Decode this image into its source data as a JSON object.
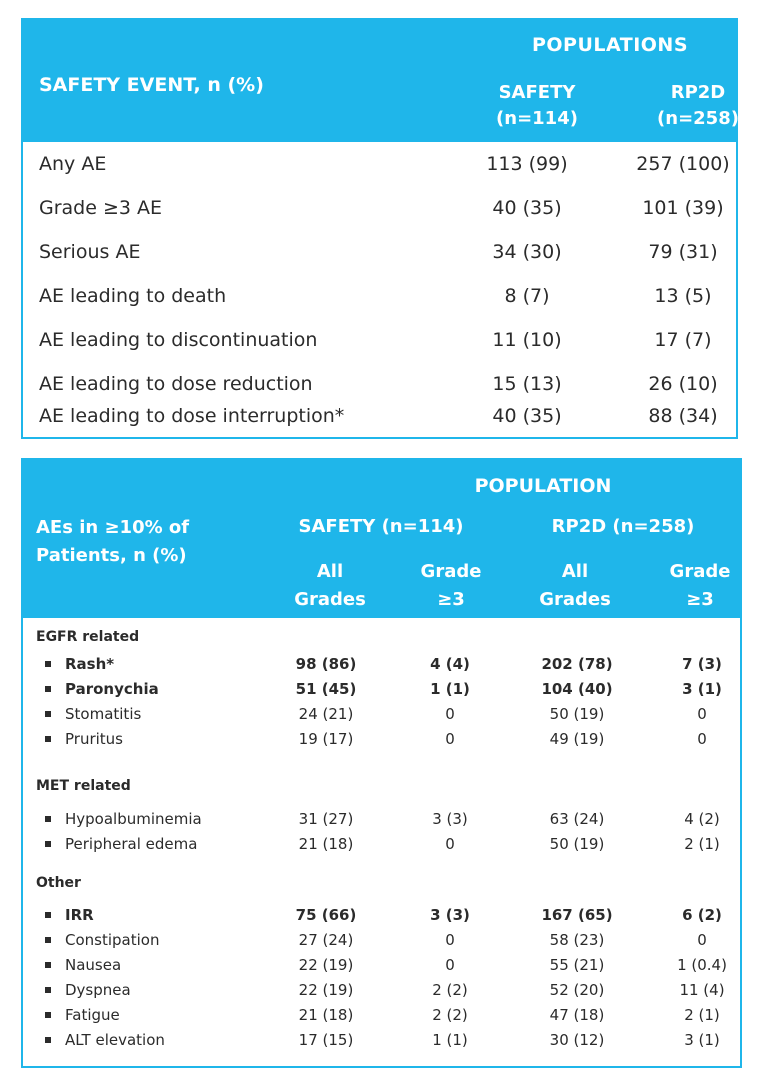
{
  "table1": {
    "header": {
      "populations": "POPULATIONS",
      "event_label": "SAFETY EVENT, n (%)",
      "safety_line1": "SAFETY",
      "safety_line2": "(n=114)",
      "rp2d_line1": "RP2D",
      "rp2d_line2": "(n=258)"
    },
    "rows": [
      {
        "label": "Any AE",
        "safety": "113 (99)",
        "rp2d": "257 (100)"
      },
      {
        "label": "Grade ≥3 AE",
        "safety": "40 (35)",
        "rp2d": "101 (39)"
      },
      {
        "label": "Serious AE",
        "safety": "34 (30)",
        "rp2d": "79 (31)"
      },
      {
        "label": "AE leading to death",
        "safety": "8 (7)",
        "rp2d": "13 (5)"
      },
      {
        "label": "AE leading to discontinuation",
        "safety": "11 (10)",
        "rp2d": "17 (7)"
      },
      {
        "label": "AE leading to dose reduction",
        "safety": "15 (13)",
        "rp2d": "26 (10)"
      },
      {
        "label": "AE leading to dose interruption*",
        "safety": "40 (35)",
        "rp2d": "88 (34)"
      }
    ]
  },
  "table2": {
    "header": {
      "population": "POPULATION",
      "ae_line1": "AEs in ≥10% of",
      "ae_line2": "Patients, n (%)",
      "safety": "SAFETY (n=114)",
      "rp2d": "RP2D (n=258)",
      "all_line1": "All",
      "all_line2": "Grades",
      "grade_line1": "Grade",
      "grade_line2": "≥3"
    },
    "sections": [
      {
        "title": "EGFR related",
        "rows": [
          {
            "name": "Rash*",
            "bold": true,
            "v": [
              "98 (86)",
              "4 (4)",
              "202 (78)",
              "7 (3)"
            ]
          },
          {
            "name": "Paronychia",
            "bold": true,
            "v": [
              "51 (45)",
              "1 (1)",
              "104 (40)",
              "3 (1)"
            ]
          },
          {
            "name": "Stomatitis",
            "bold": false,
            "v": [
              "24 (21)",
              "0",
              "50 (19)",
              "0"
            ]
          },
          {
            "name": "Pruritus",
            "bold": false,
            "v": [
              "19 (17)",
              "0",
              "49 (19)",
              "0"
            ]
          }
        ]
      },
      {
        "title": "MET related",
        "rows": [
          {
            "name": "Hypoalbuminemia",
            "bold": false,
            "v": [
              "31 (27)",
              "3 (3)",
              "63 (24)",
              "4 (2)"
            ]
          },
          {
            "name": "Peripheral edema",
            "bold": false,
            "v": [
              "21 (18)",
              "0",
              "50 (19)",
              "2 (1)"
            ]
          }
        ]
      },
      {
        "title": "Other",
        "rows": [
          {
            "name": "IRR",
            "bold": true,
            "v": [
              "75 (66)",
              "3 (3)",
              "167 (65)",
              "6 (2)"
            ]
          },
          {
            "name": "Constipation",
            "bold": false,
            "v": [
              "27 (24)",
              "0",
              "58 (23)",
              "0"
            ]
          },
          {
            "name": "Nausea",
            "bold": false,
            "v": [
              "22 (19)",
              "0",
              "55 (21)",
              "1 (0.4)"
            ]
          },
          {
            "name": "Dyspnea",
            "bold": false,
            "v": [
              "22 (19)",
              "2 (2)",
              "52 (20)",
              "11 (4)"
            ]
          },
          {
            "name": "Fatigue",
            "bold": false,
            "v": [
              "21 (18)",
              "2 (2)",
              "47 (18)",
              "2 (1)"
            ]
          },
          {
            "name": "ALT elevation",
            "bold": false,
            "v": [
              "17 (15)",
              "1 (1)",
              "30 (12)",
              "3 (1)"
            ]
          }
        ]
      }
    ]
  },
  "colors": {
    "header_bg": "#1fb6ea",
    "header_text": "#ffffff",
    "body_text": "#2b2b2b"
  }
}
